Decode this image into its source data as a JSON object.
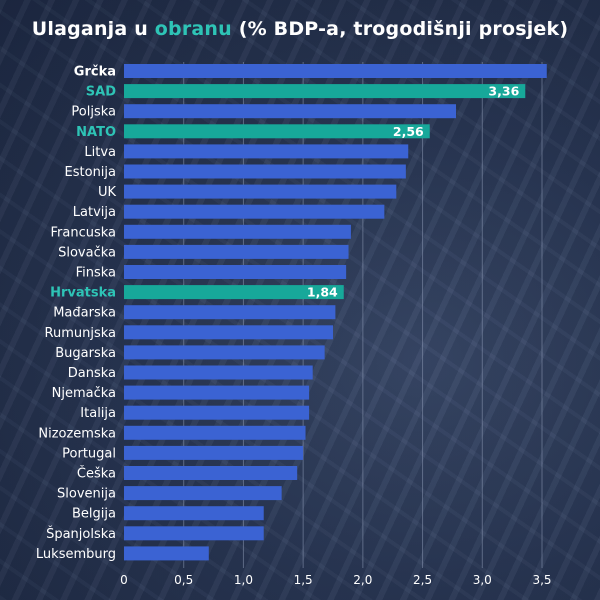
{
  "title_parts": {
    "before": "Ulaganja u ",
    "highlight": "obranu",
    "after": " (% BDP-a, trogodišnji prosjek)"
  },
  "colors": {
    "bar": "#3b63d3",
    "highlight_bar": "#17a89a",
    "highlight_label": "#2ec4b6",
    "label": "#ffffff",
    "grid": "#8a97b3"
  },
  "chart_data": {
    "type": "bar",
    "orientation": "horizontal",
    "title": "Ulaganja u obranu (% BDP-a, trogodišnji prosjek)",
    "categories": [
      "Grčka",
      "SAD",
      "Poljska",
      "NATO",
      "Litva",
      "Estonija",
      "UK",
      "Latvija",
      "Francuska",
      "Slovačka",
      "Finska",
      "Hrvatska",
      "Mađarska",
      "Rumunjska",
      "Bugarska",
      "Danska",
      "Njemačka",
      "Italija",
      "Nizozemska",
      "Portugal",
      "Češka",
      "Slovenija",
      "Belgija",
      "Španjolska",
      "Luksemburg"
    ],
    "values": [
      3.54,
      3.36,
      2.78,
      2.56,
      2.38,
      2.36,
      2.28,
      2.18,
      1.9,
      1.88,
      1.86,
      1.84,
      1.77,
      1.75,
      1.68,
      1.58,
      1.55,
      1.55,
      1.52,
      1.5,
      1.45,
      1.32,
      1.17,
      1.17,
      0.71
    ],
    "highlighted": [
      "SAD",
      "NATO",
      "Hrvatska"
    ],
    "bold_categories": [
      "Grčka"
    ],
    "data_labels": [
      {
        "category": "SAD",
        "text": "3,36"
      },
      {
        "category": "NATO",
        "text": "2,56"
      },
      {
        "category": "Hrvatska",
        "text": "1,84"
      }
    ],
    "xlim": [
      0,
      3.5
    ],
    "xticks": [
      0,
      0.5,
      1.0,
      1.5,
      2.0,
      2.5,
      3.0,
      3.5
    ],
    "xtick_labels": [
      "0",
      "0,5",
      "1,0",
      "1,5",
      "2,0",
      "2,5",
      "3,0",
      "3,5"
    ],
    "grid": "vertical",
    "legend": "none"
  }
}
